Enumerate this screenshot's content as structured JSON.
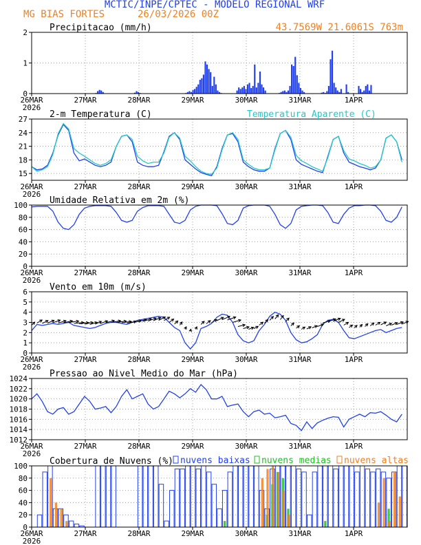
{
  "header": {
    "title": "MCTIC/INPE/CPTEC - MODELO REGIONAL WRF",
    "location": "MG BIAS FORTES",
    "run": "26/03/2026 00Z",
    "coords": "43.7569W 21.6061S 763m"
  },
  "colors": {
    "blue": "#2040f0",
    "cyan": "#20c8c8",
    "orange": "#f08020",
    "green": "#20c020",
    "black": "#000000",
    "title_blue": "#2040f0",
    "header_orange": "#f08020"
  },
  "x_axis": {
    "ticks": [
      "26MAR",
      "27MAR",
      "28MAR",
      "29MAR",
      "30MAR",
      "31MAR",
      "1APR"
    ],
    "year": "2026"
  },
  "chart_data": [
    {
      "id": "precip",
      "type": "bar",
      "title": "Precipitacao (mm/h)",
      "ylim": [
        0,
        2
      ],
      "yticks": [
        "0",
        "1",
        "2"
      ],
      "x_hours_start": 0,
      "x_hours_step": 1,
      "series": [
        {
          "name": "Precipitacao",
          "color": "#2040f0",
          "values": [
            0,
            0,
            0,
            0,
            0,
            0,
            0,
            0,
            0,
            0,
            0,
            0,
            0,
            0,
            0,
            0,
            0,
            0,
            0,
            0,
            0,
            0,
            0,
            0,
            0,
            0,
            0,
            0,
            0,
            0,
            0,
            0,
            0,
            0,
            0,
            0,
            0.02,
            0.08,
            0.12,
            0.1,
            0.05,
            0,
            0,
            0,
            0,
            0,
            0,
            0,
            0,
            0,
            0,
            0,
            0,
            0,
            0,
            0,
            0,
            0,
            0.03,
            0.08,
            0.05,
            0.02,
            0,
            0,
            0,
            0,
            0,
            0,
            0,
            0,
            0,
            0,
            0,
            0,
            0,
            0,
            0,
            0,
            0,
            0,
            0,
            0,
            0,
            0,
            0,
            0,
            0,
            0.02,
            0.05,
            0.08,
            0.05,
            0.12,
            0.15,
            0.22,
            0.3,
            0.45,
            0.5,
            0.62,
            1.05,
            0.95,
            0.8,
            0.7,
            0.25,
            0.55,
            0.3,
            0.1,
            0.05,
            0.02,
            0,
            0,
            0,
            0,
            0,
            0,
            0,
            0,
            0.1,
            0.2,
            0.15,
            0.2,
            0.25,
            0.15,
            0.3,
            0.35,
            0.18,
            0.25,
            0.95,
            0.2,
            0.35,
            0.72,
            0.3,
            0.2,
            0.1,
            0,
            0,
            0,
            0,
            0,
            0,
            0,
            0.02,
            0.05,
            0.08,
            0.1,
            0.05,
            0.1,
            0.25,
            0.95,
            0.9,
            1.2,
            0.6,
            0.35,
            0.18,
            0.1,
            0.05,
            0,
            0,
            0,
            0,
            0,
            0,
            0,
            0,
            0,
            0.03,
            0.05,
            0.02,
            0.08,
            0.25,
            1.12,
            1.4,
            0.35,
            0.2,
            0.1,
            0.05,
            0.15,
            0,
            0,
            0.3,
            0.05,
            0,
            0,
            0,
            0,
            0,
            0.25,
            0.15,
            0.05,
            0.1,
            0.25,
            0.3,
            0.1,
            0.28
          ]
        }
      ]
    },
    {
      "id": "temp",
      "type": "line",
      "title": "2-m Temperatura (C)",
      "legend": "Temperatura Aparente (C)",
      "ylim": [
        13.5,
        27
      ],
      "yticks": [
        "15",
        "18",
        "21",
        "24",
        "27"
      ],
      "ytick_values": [
        15,
        18,
        21,
        24,
        27
      ],
      "x_hours_step": 3,
      "series": [
        {
          "name": "Temperatura",
          "color": "#2040f0",
          "values": [
            16.5,
            15.8,
            16.0,
            16.8,
            19.5,
            23.5,
            25.8,
            24.5,
            19.5,
            17.8,
            18.2,
            17.5,
            16.8,
            16.5,
            16.8,
            17.5,
            21.0,
            23.2,
            23.5,
            22.0,
            17.5,
            16.8,
            16.5,
            16.5,
            16.8,
            19.8,
            23.2,
            24.0,
            22.5,
            18.0,
            17.0,
            16.0,
            15.2,
            14.8,
            14.5,
            16.5,
            20.5,
            23.5,
            23.8,
            22.0,
            17.5,
            16.5,
            15.8,
            15.5,
            15.5,
            16.2,
            20.5,
            23.8,
            24.5,
            22.5,
            18.0,
            17.0,
            16.5,
            16.0,
            15.5,
            15.2,
            18.8,
            22.5,
            23.2,
            19.5,
            17.5,
            17.0,
            16.5,
            16.2,
            15.8,
            16.2,
            18.0,
            22.8,
            23.5,
            22.0,
            18.0
          ]
        },
        {
          "name": "Temperatura Aparente",
          "color": "#20c8c8",
          "values": [
            16.5,
            15.5,
            15.8,
            16.5,
            19.2,
            23.8,
            26.0,
            24.8,
            20.5,
            19.5,
            18.8,
            18.0,
            17.2,
            16.8,
            17.2,
            18.0,
            21.0,
            23.2,
            23.5,
            22.5,
            18.8,
            17.8,
            17.2,
            17.5,
            17.5,
            19.5,
            23.0,
            24.0,
            22.8,
            18.8,
            17.8,
            16.5,
            15.5,
            15.0,
            14.8,
            16.2,
            20.2,
            23.5,
            24.0,
            22.5,
            18.0,
            17.0,
            16.2,
            15.8,
            15.8,
            16.2,
            20.2,
            23.8,
            24.5,
            23.0,
            19.0,
            17.8,
            17.2,
            16.5,
            16.0,
            15.5,
            18.5,
            22.5,
            23.2,
            20.0,
            18.2,
            17.8,
            17.2,
            16.8,
            16.2,
            16.5,
            18.0,
            22.8,
            23.5,
            22.0,
            17.5
          ]
        }
      ]
    },
    {
      "id": "rh",
      "type": "line",
      "title": "Umidade Relativa em 2m (%)",
      "ylim": [
        0,
        100
      ],
      "yticks": [
        "0",
        "20",
        "40",
        "60",
        "80",
        "100"
      ],
      "x_hours_step": 3,
      "series": [
        {
          "name": "Umidade Relativa",
          "color": "#2040f0",
          "values": [
            97,
            98,
            98,
            98,
            90,
            72,
            62,
            60,
            68,
            85,
            95,
            98,
            99,
            99,
            99,
            98,
            88,
            75,
            72,
            75,
            90,
            96,
            99,
            99,
            99,
            98,
            85,
            72,
            70,
            75,
            92,
            98,
            100,
            100,
            100,
            99,
            86,
            70,
            68,
            75,
            95,
            99,
            100,
            100,
            100,
            98,
            85,
            68,
            62,
            70,
            92,
            98,
            99,
            100,
            100,
            99,
            88,
            72,
            70,
            85,
            95,
            99,
            99,
            100,
            100,
            99,
            90,
            75,
            72,
            80,
            97
          ]
        }
      ]
    },
    {
      "id": "wind",
      "type": "line",
      "title": "Vento em 10m (m/s)",
      "ylim": [
        0,
        6
      ],
      "yticks": [
        "0",
        "1",
        "2",
        "3",
        "4",
        "5",
        "6"
      ],
      "x_hours_step": 3,
      "series": [
        {
          "name": "Vento",
          "color": "#2040f0",
          "values": [
            2.2,
            2.8,
            2.7,
            2.8,
            2.9,
            2.8,
            2.9,
            3.0,
            2.7,
            2.6,
            2.5,
            2.4,
            2.5,
            2.7,
            2.9,
            3.0,
            3.0,
            2.9,
            2.8,
            3.0,
            3.2,
            3.3,
            3.4,
            3.5,
            3.6,
            3.5,
            3.0,
            2.5,
            2.2,
            1.0,
            0.4,
            1.0,
            2.4,
            2.6,
            2.9,
            3.5,
            3.8,
            3.7,
            3.0,
            1.8,
            1.2,
            1.0,
            1.2,
            2.2,
            2.8,
            3.6,
            4.0,
            3.8,
            3.2,
            2.0,
            1.3,
            1.0,
            1.1,
            1.4,
            1.8,
            2.8,
            3.2,
            3.3,
            3.0,
            2.2,
            1.5,
            1.4,
            1.6,
            1.8,
            2.0,
            2.2,
            2.3,
            2.0,
            2.2,
            2.4,
            2.5
          ]
        }
      ],
      "arrow_dirs_deg": [
        200,
        210,
        215,
        220,
        225,
        230,
        240,
        250,
        255,
        250,
        240,
        230,
        220,
        225,
        235,
        245,
        250,
        250,
        245,
        240,
        235,
        230,
        225,
        220,
        215,
        210,
        205,
        200,
        195,
        190,
        185,
        190,
        200,
        205,
        210,
        215,
        220,
        225,
        230,
        235,
        230,
        225,
        215,
        205,
        200,
        198,
        196,
        195,
        198,
        200,
        205,
        210,
        215,
        220,
        225,
        228,
        225,
        220,
        215,
        210,
        205,
        200,
        198,
        200,
        205,
        210,
        215,
        218,
        220,
        222,
        220
      ]
    },
    {
      "id": "pres",
      "type": "line",
      "title": "Pressao ao Nivel Medio do Mar (hPa)",
      "ylim": [
        1012,
        1024
      ],
      "yticks": [
        "1012",
        "1014",
        "1016",
        "1018",
        "1020",
        "1022",
        "1024"
      ],
      "ytick_values": [
        1012,
        1014,
        1016,
        1018,
        1020,
        1022,
        1024
      ],
      "x_hours_step": 3,
      "series": [
        {
          "name": "Pressao",
          "color": "#2040f0",
          "values": [
            1020.0,
            1021.0,
            1019.5,
            1017.5,
            1017.0,
            1018.0,
            1018.3,
            1017.0,
            1017.5,
            1019.0,
            1020.5,
            1019.5,
            1018.0,
            1018.2,
            1018.5,
            1017.3,
            1018.5,
            1020.5,
            1021.8,
            1020.0,
            1020.5,
            1021.0,
            1019.0,
            1018.0,
            1018.5,
            1020.0,
            1021.5,
            1021.0,
            1020.2,
            1021.0,
            1022.0,
            1021.3,
            1022.8,
            1021.8,
            1020.0,
            1020.0,
            1020.5,
            1018.5,
            1018.8,
            1019.0,
            1017.5,
            1016.5,
            1017.5,
            1017.8,
            1017.0,
            1017.2,
            1016.3,
            1016.5,
            1016.8,
            1015.2,
            1014.8,
            1013.8,
            1015.5,
            1014.2,
            1015.3,
            1015.8,
            1016.2,
            1016.5,
            1016.4,
            1014.5,
            1016.0,
            1016.5,
            1017.0,
            1016.5,
            1017.3,
            1017.2,
            1017.5,
            1016.8,
            1016.0,
            1015.5,
            1017.0
          ]
        }
      ]
    },
    {
      "id": "clouds",
      "type": "bar",
      "title": "Cobertura de Nuvens (%)",
      "legend": [
        "nuvens baixas",
        "nuvens medias",
        "nuvens altas"
      ],
      "ylim": [
        0,
        100
      ],
      "yticks": [
        "0",
        "20",
        "40",
        "60",
        "80",
        "100"
      ],
      "x_hours_step": 3,
      "series": [
        {
          "name": "nuvens baixas",
          "color": "#2040f0",
          "values": [
            0,
            20,
            90,
            100,
            30,
            30,
            20,
            10,
            5,
            2,
            0,
            0,
            100,
            100,
            100,
            100,
            0,
            0,
            0,
            0,
            100,
            100,
            100,
            100,
            70,
            10,
            60,
            95,
            95,
            100,
            100,
            95,
            100,
            90,
            70,
            30,
            60,
            90,
            100,
            100,
            100,
            100,
            100,
            60,
            30,
            95,
            100,
            100,
            100,
            100,
            95,
            90,
            20,
            90,
            100,
            100,
            100,
            95,
            100,
            100,
            100,
            90,
            100,
            95,
            90,
            95,
            90,
            80,
            90,
            100,
            100
          ]
        },
        {
          "name": "nuvens medias",
          "color": "#20c020",
          "values": [
            0,
            0,
            0,
            0,
            0,
            0,
            0,
            0,
            0,
            0,
            0,
            0,
            0,
            0,
            0,
            0,
            0,
            0,
            0,
            0,
            0,
            0,
            0,
            0,
            0,
            0,
            0,
            0,
            0,
            0,
            0,
            0,
            0,
            0,
            0,
            0,
            10,
            0,
            0,
            0,
            0,
            0,
            0,
            0,
            20,
            70,
            90,
            80,
            30,
            0,
            0,
            0,
            0,
            0,
            0,
            10,
            0,
            0,
            0,
            0,
            0,
            0,
            0,
            0,
            0,
            0,
            0,
            30,
            0,
            0,
            0
          ]
        },
        {
          "name": "nuvens altas",
          "color": "#f08020",
          "values": [
            0,
            0,
            0,
            80,
            40,
            30,
            10,
            0,
            0,
            0,
            0,
            0,
            0,
            0,
            0,
            0,
            0,
            0,
            0,
            0,
            0,
            0,
            0,
            0,
            0,
            0,
            0,
            0,
            0,
            0,
            0,
            0,
            0,
            0,
            0,
            0,
            0,
            0,
            0,
            0,
            0,
            0,
            0,
            80,
            95,
            100,
            90,
            60,
            20,
            0,
            0,
            0,
            0,
            0,
            0,
            0,
            0,
            0,
            0,
            0,
            0,
            0,
            0,
            0,
            0,
            40,
            80,
            10,
            90,
            50,
            0
          ]
        }
      ]
    }
  ]
}
